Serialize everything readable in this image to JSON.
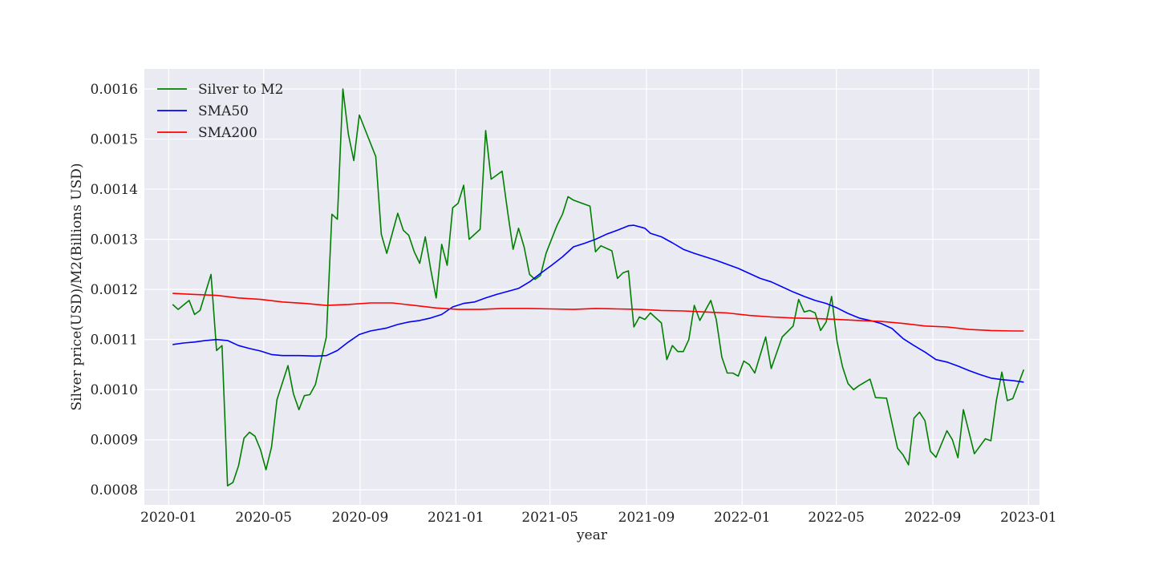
{
  "chart_data": {
    "type": "line",
    "title": "",
    "xlabel": "year",
    "ylabel": "Silver price(USD)/M2(Billions USD)",
    "grid": true,
    "legend_position": "top-left",
    "xlim": [
      "2019-12-01",
      "2023-01-15"
    ],
    "ylim": [
      0.00077,
      0.00164
    ],
    "x_ticks": [
      "2020-01",
      "2020-05",
      "2020-09",
      "2021-01",
      "2021-05",
      "2021-09",
      "2022-01",
      "2022-05",
      "2022-09",
      "2023-01"
    ],
    "y_ticks": [
      "0.0008",
      "0.0009",
      "0.0010",
      "0.0011",
      "0.0012",
      "0.0013",
      "0.0014",
      "0.0015",
      "0.0016"
    ],
    "series": [
      {
        "name": "Silver to M2",
        "color": "#008000",
        "points": [
          [
            "2020-01-06",
            0.00117
          ],
          [
            "2020-01-13",
            0.00116
          ],
          [
            "2020-01-27",
            0.001178
          ],
          [
            "2020-02-03",
            0.00115
          ],
          [
            "2020-02-10",
            0.001158
          ],
          [
            "2020-02-24",
            0.00123
          ],
          [
            "2020-03-02",
            0.001078
          ],
          [
            "2020-03-09",
            0.001088
          ],
          [
            "2020-03-16",
            0.000808
          ],
          [
            "2020-03-23",
            0.000815
          ],
          [
            "2020-03-30",
            0.000848
          ],
          [
            "2020-04-06",
            0.000903
          ],
          [
            "2020-04-13",
            0.000915
          ],
          [
            "2020-04-20",
            0.000907
          ],
          [
            "2020-04-27",
            0.00088
          ],
          [
            "2020-05-04",
            0.00084
          ],
          [
            "2020-05-11",
            0.000885
          ],
          [
            "2020-05-18",
            0.00098
          ],
          [
            "2020-06-01",
            0.001048
          ],
          [
            "2020-06-08",
            0.000992
          ],
          [
            "2020-06-15",
            0.00096
          ],
          [
            "2020-06-22",
            0.000988
          ],
          [
            "2020-06-29",
            0.00099
          ],
          [
            "2020-07-06",
            0.00101
          ],
          [
            "2020-07-20",
            0.001105
          ],
          [
            "2020-07-27",
            0.00135
          ],
          [
            "2020-08-03",
            0.00134
          ],
          [
            "2020-08-10",
            0.0016
          ],
          [
            "2020-08-17",
            0.00151
          ],
          [
            "2020-08-24",
            0.001457
          ],
          [
            "2020-08-31",
            0.001548
          ],
          [
            "2020-09-21",
            0.001465
          ],
          [
            "2020-09-28",
            0.00131
          ],
          [
            "2020-10-05",
            0.001272
          ],
          [
            "2020-10-12",
            0.001312
          ],
          [
            "2020-10-19",
            0.001352
          ],
          [
            "2020-10-26",
            0.001318
          ],
          [
            "2020-11-02",
            0.001308
          ],
          [
            "2020-11-09",
            0.001275
          ],
          [
            "2020-11-16",
            0.001252
          ],
          [
            "2020-11-23",
            0.001305
          ],
          [
            "2020-11-30",
            0.00124
          ],
          [
            "2020-12-07",
            0.001183
          ],
          [
            "2020-12-14",
            0.00129
          ],
          [
            "2020-12-21",
            0.001248
          ],
          [
            "2020-12-28",
            0.001363
          ],
          [
            "2021-01-04",
            0.001372
          ],
          [
            "2021-01-11",
            0.001408
          ],
          [
            "2021-01-18",
            0.0013
          ],
          [
            "2021-02-01",
            0.00132
          ],
          [
            "2021-02-08",
            0.001517
          ],
          [
            "2021-02-15",
            0.00142
          ],
          [
            "2021-03-01",
            0.001436
          ],
          [
            "2021-03-08",
            0.001355
          ],
          [
            "2021-03-15",
            0.00128
          ],
          [
            "2021-03-22",
            0.001322
          ],
          [
            "2021-03-29",
            0.001285
          ],
          [
            "2021-04-05",
            0.00123
          ],
          [
            "2021-04-12",
            0.00122
          ],
          [
            "2021-04-19",
            0.001228
          ],
          [
            "2021-04-26",
            0.001272
          ],
          [
            "2021-05-10",
            0.001328
          ],
          [
            "2021-05-17",
            0.00135
          ],
          [
            "2021-05-24",
            0.001385
          ],
          [
            "2021-05-31",
            0.001378
          ],
          [
            "2021-06-14",
            0.00137
          ],
          [
            "2021-06-21",
            0.001366
          ],
          [
            "2021-06-28",
            0.001275
          ],
          [
            "2021-07-05",
            0.001287
          ],
          [
            "2021-07-19",
            0.001277
          ],
          [
            "2021-07-26",
            0.001222
          ],
          [
            "2021-08-02",
            0.001233
          ],
          [
            "2021-08-09",
            0.001237
          ],
          [
            "2021-08-16",
            0.001125
          ],
          [
            "2021-08-23",
            0.001145
          ],
          [
            "2021-08-30",
            0.00114
          ],
          [
            "2021-09-06",
            0.001153
          ],
          [
            "2021-09-20",
            0.001133
          ],
          [
            "2021-09-27",
            0.00106
          ],
          [
            "2021-10-04",
            0.001088
          ],
          [
            "2021-10-11",
            0.001076
          ],
          [
            "2021-10-18",
            0.001076
          ],
          [
            "2021-10-25",
            0.0011
          ],
          [
            "2021-11-01",
            0.001168
          ],
          [
            "2021-11-08",
            0.001138
          ],
          [
            "2021-11-22",
            0.001178
          ],
          [
            "2021-11-29",
            0.00114
          ],
          [
            "2021-12-06",
            0.001065
          ],
          [
            "2021-12-13",
            0.001033
          ],
          [
            "2021-12-20",
            0.001033
          ],
          [
            "2021-12-27",
            0.001027
          ],
          [
            "2022-01-03",
            0.001057
          ],
          [
            "2022-01-10",
            0.00105
          ],
          [
            "2022-01-17",
            0.001033
          ],
          [
            "2022-01-31",
            0.001105
          ],
          [
            "2022-02-07",
            0.001042
          ],
          [
            "2022-02-21",
            0.001105
          ],
          [
            "2022-03-07",
            0.001127
          ],
          [
            "2022-03-14",
            0.00118
          ],
          [
            "2022-03-21",
            0.001155
          ],
          [
            "2022-03-28",
            0.001158
          ],
          [
            "2022-04-04",
            0.001153
          ],
          [
            "2022-04-11",
            0.001118
          ],
          [
            "2022-04-18",
            0.001135
          ],
          [
            "2022-04-25",
            0.001186
          ],
          [
            "2022-05-02",
            0.001095
          ],
          [
            "2022-05-09",
            0.001045
          ],
          [
            "2022-05-16",
            0.001012
          ],
          [
            "2022-05-23",
            0.001
          ],
          [
            "2022-05-30",
            0.001008
          ],
          [
            "2022-06-13",
            0.001021
          ],
          [
            "2022-06-20",
            0.000984
          ],
          [
            "2022-07-04",
            0.000983
          ],
          [
            "2022-07-18",
            0.000883
          ],
          [
            "2022-07-25",
            0.00087
          ],
          [
            "2022-08-01",
            0.00085
          ],
          [
            "2022-08-08",
            0.000943
          ],
          [
            "2022-08-15",
            0.000955
          ],
          [
            "2022-08-22",
            0.000938
          ],
          [
            "2022-08-29",
            0.000877
          ],
          [
            "2022-09-05",
            0.000865
          ],
          [
            "2022-09-19",
            0.000918
          ],
          [
            "2022-09-26",
            0.0009
          ],
          [
            "2022-10-03",
            0.000864
          ],
          [
            "2022-10-10",
            0.00096
          ],
          [
            "2022-10-24",
            0.000872
          ],
          [
            "2022-11-07",
            0.000902
          ],
          [
            "2022-11-14",
            0.000898
          ],
          [
            "2022-11-21",
            0.000978
          ],
          [
            "2022-11-28",
            0.001035
          ],
          [
            "2022-12-05",
            0.000978
          ],
          [
            "2022-12-12",
            0.000982
          ],
          [
            "2022-12-26",
            0.00104
          ]
        ]
      },
      {
        "name": "SMA50",
        "color": "#0000ff",
        "points": [
          [
            "2020-01-06",
            0.00109
          ],
          [
            "2020-01-20",
            0.001093
          ],
          [
            "2020-02-03",
            0.001095
          ],
          [
            "2020-02-17",
            0.001098
          ],
          [
            "2020-03-02",
            0.0011
          ],
          [
            "2020-03-16",
            0.001098
          ],
          [
            "2020-03-30",
            0.001088
          ],
          [
            "2020-04-13",
            0.001082
          ],
          [
            "2020-04-27",
            0.001077
          ],
          [
            "2020-05-11",
            0.00107
          ],
          [
            "2020-05-25",
            0.001068
          ],
          [
            "2020-06-15",
            0.001068
          ],
          [
            "2020-07-06",
            0.001067
          ],
          [
            "2020-07-20",
            0.001068
          ],
          [
            "2020-08-03",
            0.001078
          ],
          [
            "2020-08-17",
            0.001095
          ],
          [
            "2020-08-31",
            0.00111
          ],
          [
            "2020-09-14",
            0.001117
          ],
          [
            "2020-10-05",
            0.001123
          ],
          [
            "2020-10-19",
            0.00113
          ],
          [
            "2020-11-02",
            0.001135
          ],
          [
            "2020-11-16",
            0.001138
          ],
          [
            "2020-11-30",
            0.001143
          ],
          [
            "2020-12-14",
            0.00115
          ],
          [
            "2020-12-28",
            0.001165
          ],
          [
            "2021-01-11",
            0.001172
          ],
          [
            "2021-01-25",
            0.001175
          ],
          [
            "2021-02-08",
            0.001183
          ],
          [
            "2021-02-22",
            0.00119
          ],
          [
            "2021-03-08",
            0.001196
          ],
          [
            "2021-03-22",
            0.001202
          ],
          [
            "2021-04-05",
            0.001215
          ],
          [
            "2021-04-19",
            0.001232
          ],
          [
            "2021-05-03",
            0.001248
          ],
          [
            "2021-05-17",
            0.001265
          ],
          [
            "2021-05-31",
            0.001285
          ],
          [
            "2021-06-14",
            0.001292
          ],
          [
            "2021-06-28",
            0.0013
          ],
          [
            "2021-07-12",
            0.00131
          ],
          [
            "2021-07-26",
            0.001318
          ],
          [
            "2021-08-09",
            0.001327
          ],
          [
            "2021-08-16",
            0.001328
          ],
          [
            "2021-08-30",
            0.001322
          ],
          [
            "2021-09-06",
            0.001312
          ],
          [
            "2021-09-20",
            0.001305
          ],
          [
            "2021-10-04",
            0.001293
          ],
          [
            "2021-10-18",
            0.00128
          ],
          [
            "2021-11-01",
            0.001272
          ],
          [
            "2021-11-15",
            0.001265
          ],
          [
            "2021-11-29",
            0.001258
          ],
          [
            "2021-12-13",
            0.00125
          ],
          [
            "2021-12-27",
            0.001242
          ],
          [
            "2022-01-10",
            0.001232
          ],
          [
            "2022-01-24",
            0.001222
          ],
          [
            "2022-02-07",
            0.001215
          ],
          [
            "2022-02-21",
            0.001205
          ],
          [
            "2022-03-07",
            0.001195
          ],
          [
            "2022-03-21",
            0.001186
          ],
          [
            "2022-04-04",
            0.001178
          ],
          [
            "2022-04-18",
            0.001172
          ],
          [
            "2022-05-02",
            0.001163
          ],
          [
            "2022-05-16",
            0.001152
          ],
          [
            "2022-05-30",
            0.001143
          ],
          [
            "2022-06-13",
            0.001138
          ],
          [
            "2022-06-27",
            0.001132
          ],
          [
            "2022-07-11",
            0.001122
          ],
          [
            "2022-07-25",
            0.001102
          ],
          [
            "2022-08-08",
            0.001088
          ],
          [
            "2022-08-22",
            0.001075
          ],
          [
            "2022-09-05",
            0.00106
          ],
          [
            "2022-09-19",
            0.001055
          ],
          [
            "2022-10-03",
            0.001047
          ],
          [
            "2022-10-17",
            0.001038
          ],
          [
            "2022-10-31",
            0.00103
          ],
          [
            "2022-11-14",
            0.001023
          ],
          [
            "2022-11-28",
            0.00102
          ],
          [
            "2022-12-12",
            0.001018
          ],
          [
            "2022-12-26",
            0.001015
          ]
        ]
      },
      {
        "name": "SMA200",
        "color": "#ff0000",
        "points": [
          [
            "2020-01-06",
            0.001192
          ],
          [
            "2020-02-03",
            0.00119
          ],
          [
            "2020-03-02",
            0.001188
          ],
          [
            "2020-03-30",
            0.001183
          ],
          [
            "2020-04-27",
            0.00118
          ],
          [
            "2020-05-25",
            0.001175
          ],
          [
            "2020-06-22",
            0.001172
          ],
          [
            "2020-07-20",
            0.001168
          ],
          [
            "2020-08-17",
            0.00117
          ],
          [
            "2020-09-14",
            0.001173
          ],
          [
            "2020-10-12",
            0.001173
          ],
          [
            "2020-11-09",
            0.001168
          ],
          [
            "2020-12-07",
            0.001163
          ],
          [
            "2021-01-04",
            0.00116
          ],
          [
            "2021-02-01",
            0.00116
          ],
          [
            "2021-03-01",
            0.001162
          ],
          [
            "2021-04-05",
            0.001162
          ],
          [
            "2021-05-03",
            0.001161
          ],
          [
            "2021-05-31",
            0.00116
          ],
          [
            "2021-06-28",
            0.001162
          ],
          [
            "2021-07-26",
            0.001161
          ],
          [
            "2021-08-23",
            0.00116
          ],
          [
            "2021-09-20",
            0.001158
          ],
          [
            "2021-10-18",
            0.001157
          ],
          [
            "2021-11-15",
            0.001155
          ],
          [
            "2021-12-13",
            0.001153
          ],
          [
            "2022-01-10",
            0.001148
          ],
          [
            "2022-02-07",
            0.001145
          ],
          [
            "2022-03-07",
            0.001143
          ],
          [
            "2022-04-04",
            0.001142
          ],
          [
            "2022-05-02",
            0.00114
          ],
          [
            "2022-05-30",
            0.001138
          ],
          [
            "2022-06-27",
            0.001136
          ],
          [
            "2022-07-25",
            0.001132
          ],
          [
            "2022-08-22",
            0.001127
          ],
          [
            "2022-09-19",
            0.001125
          ],
          [
            "2022-10-17",
            0.00112
          ],
          [
            "2022-11-14",
            0.001118
          ],
          [
            "2022-12-12",
            0.001117
          ],
          [
            "2022-12-26",
            0.001117
          ]
        ]
      }
    ]
  }
}
